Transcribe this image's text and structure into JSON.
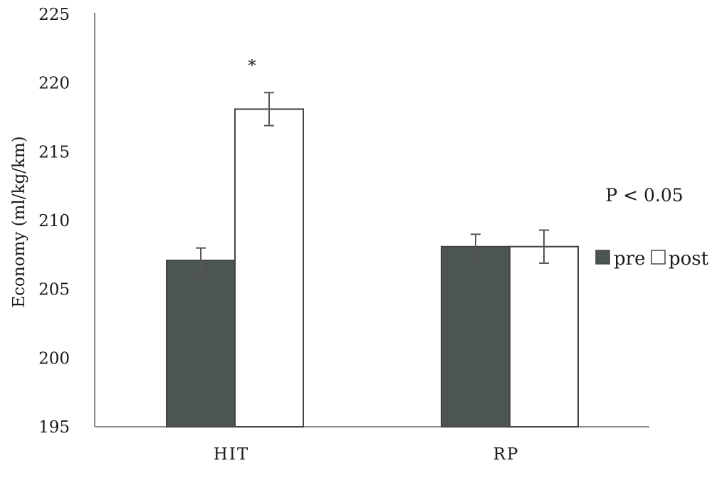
{
  "chart_data": {
    "type": "bar",
    "categories": [
      "HIT",
      "RP"
    ],
    "series": [
      {
        "name": "pre",
        "values": [
          207.1,
          208.1
        ],
        "errors": [
          0.9,
          0.9
        ],
        "color": "#4d5553"
      },
      {
        "name": "post",
        "values": [
          218.1,
          208.1
        ],
        "errors": [
          1.2,
          1.2
        ],
        "color": "#ffffff"
      }
    ],
    "title": "",
    "xlabel": "",
    "ylabel": "Economy (ml/kg/km)",
    "ylim": [
      195,
      225
    ],
    "yticks": [
      195,
      200,
      205,
      210,
      215,
      220,
      225
    ],
    "grid": false,
    "legend_position": "right",
    "annotations": [
      {
        "text": "*",
        "category": "HIT",
        "series": "post"
      },
      {
        "text": "P < 0.05"
      }
    ]
  }
}
